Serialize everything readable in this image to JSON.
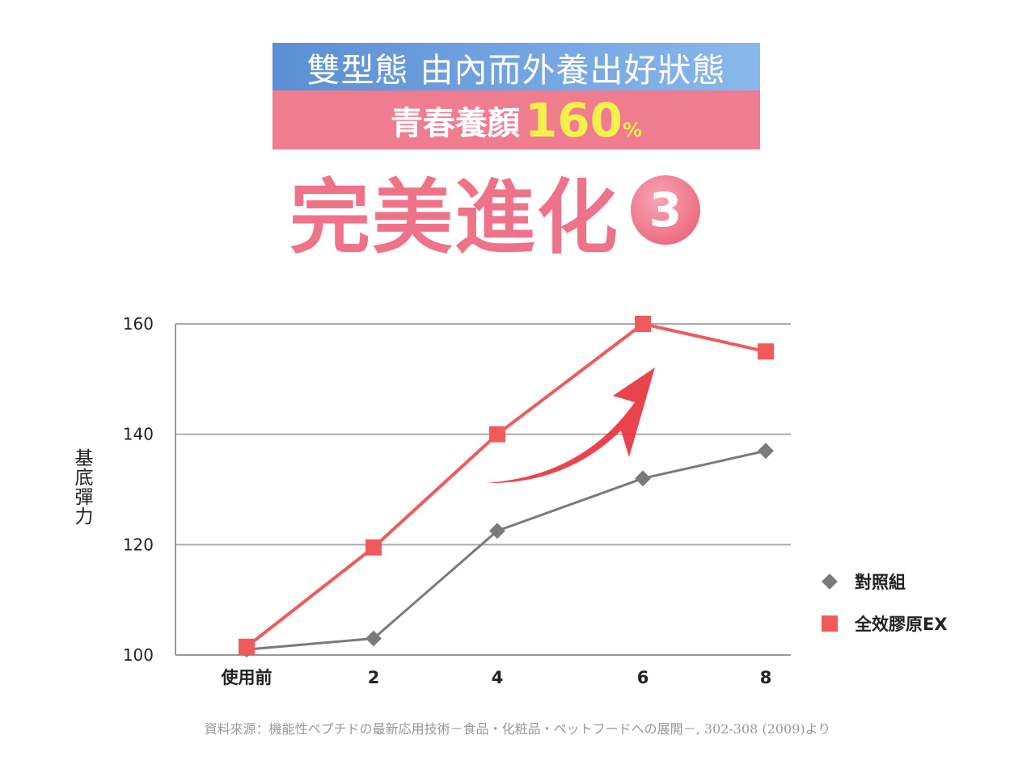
{
  "header": {
    "subtitle": "雙型態 由內而外養出好狀態",
    "highlight_prefix": "青春養顏",
    "highlight_value": "160",
    "highlight_unit": "%",
    "headline": "完美進化",
    "headline_badge": "3"
  },
  "source_note": "資料來源：機能性ペプチドの最新応用技術－食品・化粧品・ペットフードへの展開－, 302-308 (2009)より",
  "colors": {
    "control": "#7a7a7a",
    "product": "#f05a5a",
    "arrow": "#e8333e",
    "grid": "#aaaaaa"
  },
  "chart_data": {
    "type": "line",
    "ylabel": "基底彈力",
    "xlabel": "",
    "categories": [
      "使用前",
      "2",
      "4",
      "6",
      "8"
    ],
    "ylim": [
      100,
      160
    ],
    "yticks": [
      100,
      120,
      140,
      160
    ],
    "grid": true,
    "legend_position": "right",
    "series": [
      {
        "name": "對照組",
        "marker": "diamond",
        "values": [
          101,
          103,
          122.5,
          132,
          137
        ]
      },
      {
        "name": "全效膠原EX",
        "marker": "square",
        "values": [
          101.5,
          119.5,
          140,
          160,
          155
        ]
      }
    ],
    "annotation": "upward arrow"
  }
}
